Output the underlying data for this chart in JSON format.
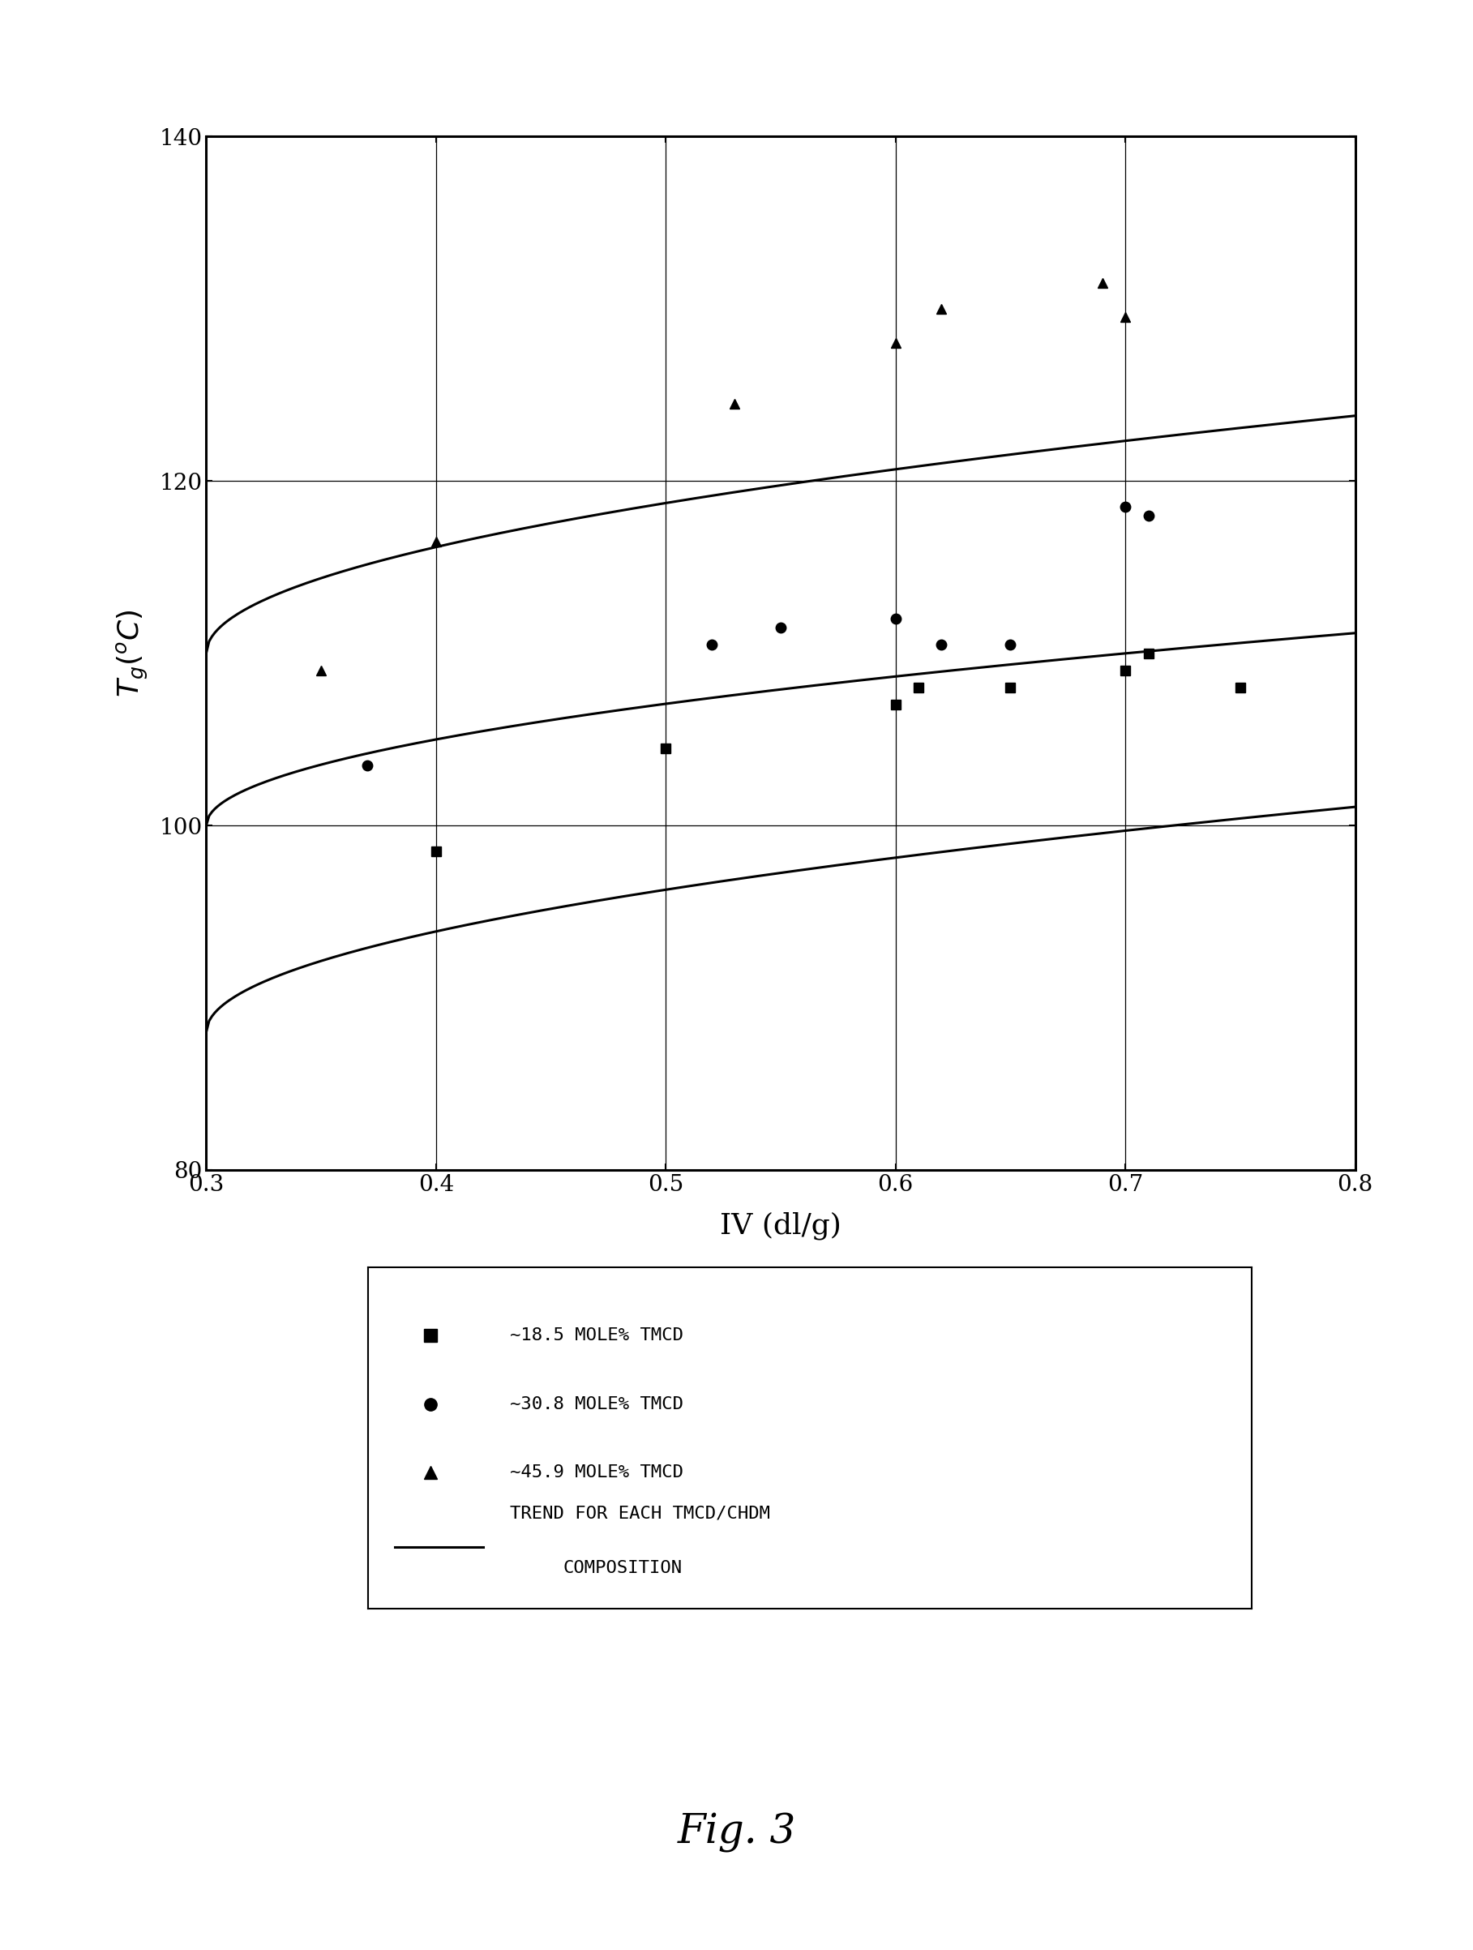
{
  "xlabel": "IV (dl/g)",
  "xlim": [
    0.3,
    0.8
  ],
  "ylim": [
    80,
    140
  ],
  "xticks": [
    0.3,
    0.4,
    0.5,
    0.6,
    0.7,
    0.8
  ],
  "yticks": [
    80,
    100,
    120,
    140
  ],
  "background_color": "#ffffff",
  "fig_caption": "Fig. 3",
  "series_18_5_x": [
    0.4,
    0.5,
    0.6,
    0.61,
    0.65,
    0.7,
    0.71,
    0.75
  ],
  "series_18_5_y": [
    98.5,
    104.5,
    107.0,
    108.0,
    108.0,
    109.0,
    110.0,
    108.0
  ],
  "series_30_8_x": [
    0.37,
    0.52,
    0.55,
    0.6,
    0.62,
    0.65,
    0.7,
    0.71
  ],
  "series_30_8_y": [
    103.5,
    110.5,
    111.5,
    112.0,
    110.5,
    110.5,
    118.5,
    118.0
  ],
  "series_45_9_x": [
    0.35,
    0.4,
    0.53,
    0.6,
    0.62,
    0.69,
    0.7
  ],
  "series_45_9_y": [
    109.0,
    116.5,
    124.5,
    128.0,
    130.0,
    131.5,
    129.5
  ],
  "curve1_A": 88.0,
  "curve1_B": 18.5,
  "curve2_A": 100.0,
  "curve2_B": 15.8,
  "curve3_A": 110.0,
  "curve3_B": 19.5,
  "legend_entry1": "~18.5 MOLE% TMCD",
  "legend_entry2": "~30.8 MOLE% TMCD",
  "legend_entry3": "~45.9 MOLE% TMCD",
  "legend_line_text1": "TREND FOR EACH TMCD/CHDM",
  "legend_line_text2": "COMPOSITION"
}
